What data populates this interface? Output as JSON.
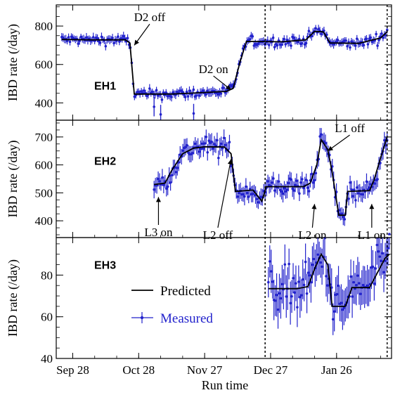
{
  "chart_data": {
    "type": "line",
    "xlabel": "Run time",
    "x_ticks": [
      {
        "label": "Sep 28",
        "day": 0
      },
      {
        "label": "Oct 28",
        "day": 30
      },
      {
        "label": "Nov 27",
        "day": 60
      },
      {
        "label": "Dec 27",
        "day": 90
      },
      {
        "label": "Jan 26",
        "day": 120
      }
    ],
    "x_range_days": [
      -7.5,
      145
    ],
    "x_reference": "Sep 28",
    "vlines_days": [
      87.5,
      143
    ],
    "legend": {
      "predicted": "Predicted",
      "measured": "Measured",
      "placement": "inside EH3 panel, left"
    },
    "colors": {
      "predicted": "#000000",
      "measured": "#2222cc"
    },
    "panels": [
      {
        "name": "EH1",
        "ylabel": "IBD rate (/day)",
        "ylim": [
          310,
          910
        ],
        "yticks": [
          400,
          600,
          800
        ],
        "predicted": [
          [
            -5,
            730
          ],
          [
            8,
            728
          ],
          [
            24,
            728
          ],
          [
            26,
            712
          ],
          [
            28,
            446
          ],
          [
            45,
            446
          ],
          [
            60,
            454
          ],
          [
            70,
            460
          ],
          [
            73,
            476
          ],
          [
            76,
            610
          ],
          [
            79,
            720
          ],
          [
            95,
            718
          ],
          [
            106,
            728
          ],
          [
            110,
            772
          ],
          [
            114,
            770
          ],
          [
            117,
            712
          ],
          [
            130,
            710
          ],
          [
            140,
            738
          ],
          [
            143,
            770
          ]
        ],
        "measured_start": -5,
        "measured_end": 143,
        "measured_noise": 18,
        "outliers": [
          [
            40,
            330
          ],
          [
            55,
            335
          ],
          [
            37,
            370
          ]
        ],
        "annotations": [
          {
            "text": "D2 off",
            "day": 35,
            "value": 825,
            "arrow_to": [
              28,
              700
            ]
          },
          {
            "text": "D2 on",
            "day": 64,
            "value": 555,
            "arrow_to": [
              72,
              468
            ]
          }
        ]
      },
      {
        "name": "EH2",
        "ylabel": "IBD rate (/day)",
        "ylim": [
          340,
          760
        ],
        "yticks": [
          400,
          500,
          600,
          700
        ],
        "predicted": [
          [
            37,
            530
          ],
          [
            42,
            535
          ],
          [
            45,
            580
          ],
          [
            50,
            640
          ],
          [
            55,
            660
          ],
          [
            60,
            665
          ],
          [
            69,
            664
          ],
          [
            72,
            640
          ],
          [
            74,
            505
          ],
          [
            82,
            510
          ],
          [
            86,
            470
          ],
          [
            88,
            522
          ],
          [
            105,
            522
          ],
          [
            108,
            535
          ],
          [
            111,
            600
          ],
          [
            113,
            690
          ],
          [
            116,
            655
          ],
          [
            118,
            575
          ],
          [
            121,
            420
          ],
          [
            124,
            420
          ],
          [
            125,
            505
          ],
          [
            135,
            508
          ],
          [
            137,
            545
          ],
          [
            140,
            625
          ],
          [
            143,
            700
          ]
        ],
        "measured_start": 37,
        "measured_end": 143,
        "measured_noise": 25,
        "outliers": [],
        "annotations": [
          {
            "text": "L3 on",
            "day": 39,
            "value": 345,
            "arrow_to": [
              39,
              485
            ]
          },
          {
            "text": "L2 off",
            "day": 66,
            "value": 335,
            "arrow_to": [
              72,
              620
            ]
          },
          {
            "text": "L2 on",
            "day": 109,
            "value": 335,
            "arrow_to": [
              110,
              460
            ]
          },
          {
            "text": "L1 off",
            "day": 126,
            "value": 717,
            "arrow_to": [
              116,
              650
            ]
          },
          {
            "text": "L1 on",
            "day": 136,
            "value": 335,
            "arrow_to": [
              136,
              460
            ]
          }
        ]
      },
      {
        "name": "EH3",
        "ylabel": "IBD rate (/day)",
        "ylim": [
          40,
          98
        ],
        "yticks": [
          40,
          60,
          80
        ],
        "predicted": [
          [
            89,
            73.5
          ],
          [
            102,
            73.5
          ],
          [
            107,
            74.5
          ],
          [
            110,
            83
          ],
          [
            113,
            90
          ],
          [
            116,
            85
          ],
          [
            118,
            65
          ],
          [
            124,
            65
          ],
          [
            127,
            74
          ],
          [
            135,
            74
          ],
          [
            138,
            80
          ],
          [
            142,
            88
          ],
          [
            144,
            90
          ]
        ],
        "measured_start": 89,
        "measured_end": 144,
        "measured_noise": 8,
        "outliers": [],
        "annotations": []
      }
    ]
  }
}
